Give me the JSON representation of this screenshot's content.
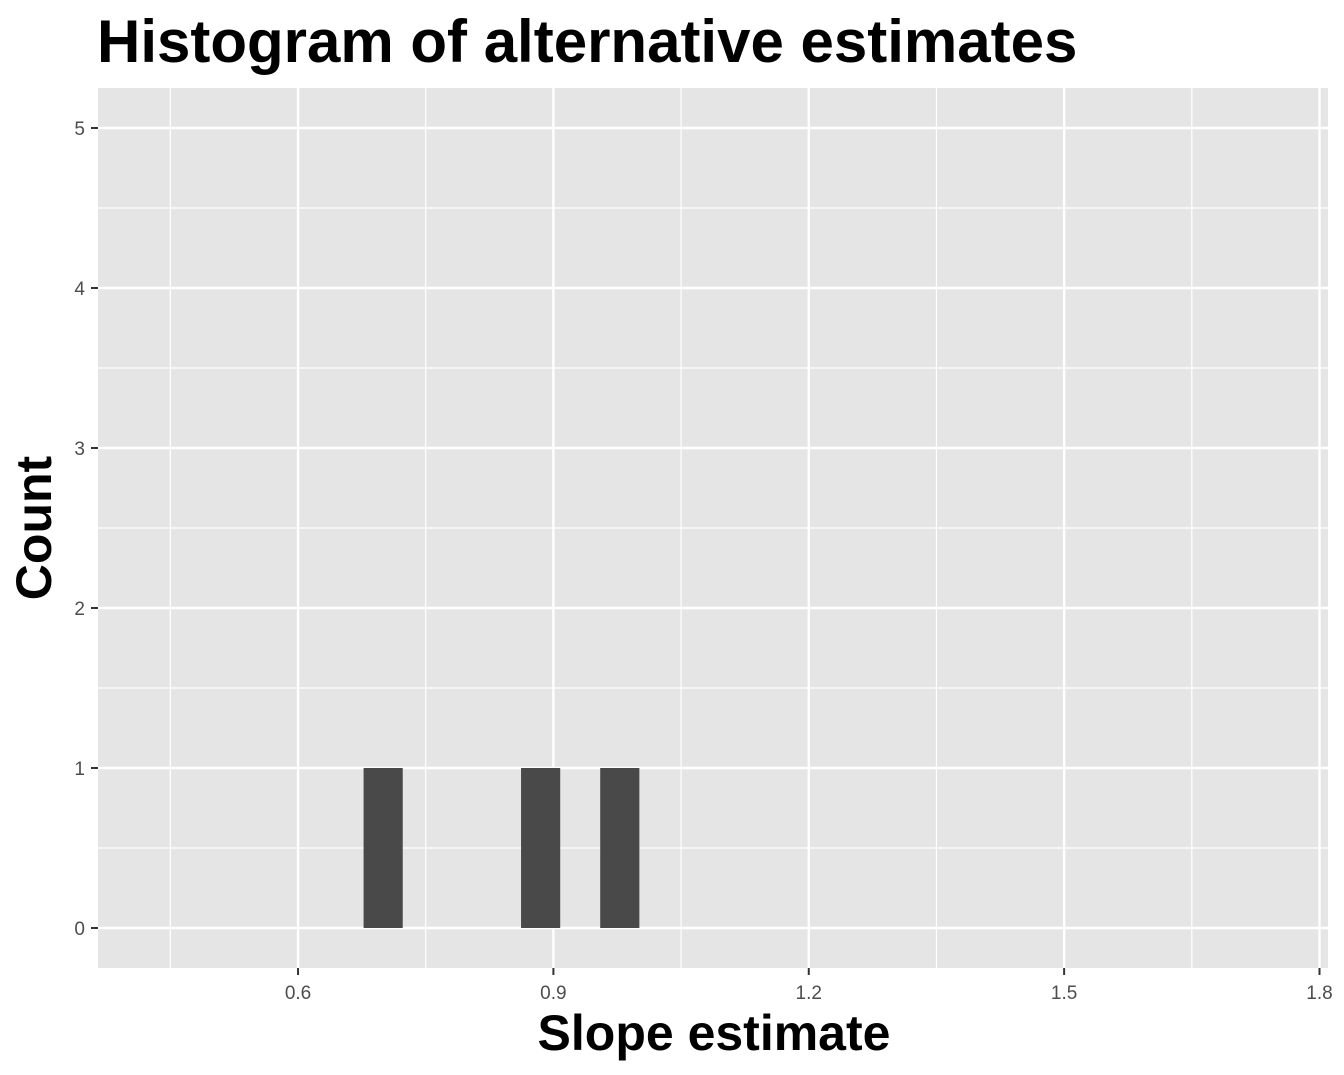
{
  "chart_data": {
    "type": "bar",
    "title": "Histogram of alternative estimates",
    "xlabel": "Slope estimate",
    "ylabel": "Count",
    "xlim": [
      0.365,
      1.81
    ],
    "ylim": [
      -0.25,
      5.25
    ],
    "bins": [
      {
        "x0": 0.677,
        "x1": 0.723,
        "count": 1
      },
      {
        "x0": 0.862,
        "x1": 0.908,
        "count": 1
      },
      {
        "x0": 0.955,
        "x1": 1.001,
        "count": 1
      }
    ],
    "x_ticks": [
      {
        "value": 0.6,
        "label": "0.6"
      },
      {
        "value": 0.9,
        "label": "0.9"
      },
      {
        "value": 1.2,
        "label": "1.2"
      },
      {
        "value": 1.5,
        "label": "1.5"
      },
      {
        "value": 1.8,
        "label": "1.8"
      }
    ],
    "y_ticks": [
      {
        "value": 0,
        "label": "0"
      },
      {
        "value": 1,
        "label": "1"
      },
      {
        "value": 2,
        "label": "2"
      },
      {
        "value": 3,
        "label": "3"
      },
      {
        "value": 4,
        "label": "4"
      },
      {
        "value": 5,
        "label": "5"
      }
    ],
    "grid": true,
    "legend": "none",
    "colors": {
      "panel_background": "#e5e5e5",
      "grid_line": "#ffffff",
      "bar_fill": "#494949",
      "tick_text": "#4d4d4d",
      "tick_mark": "#333333"
    }
  }
}
